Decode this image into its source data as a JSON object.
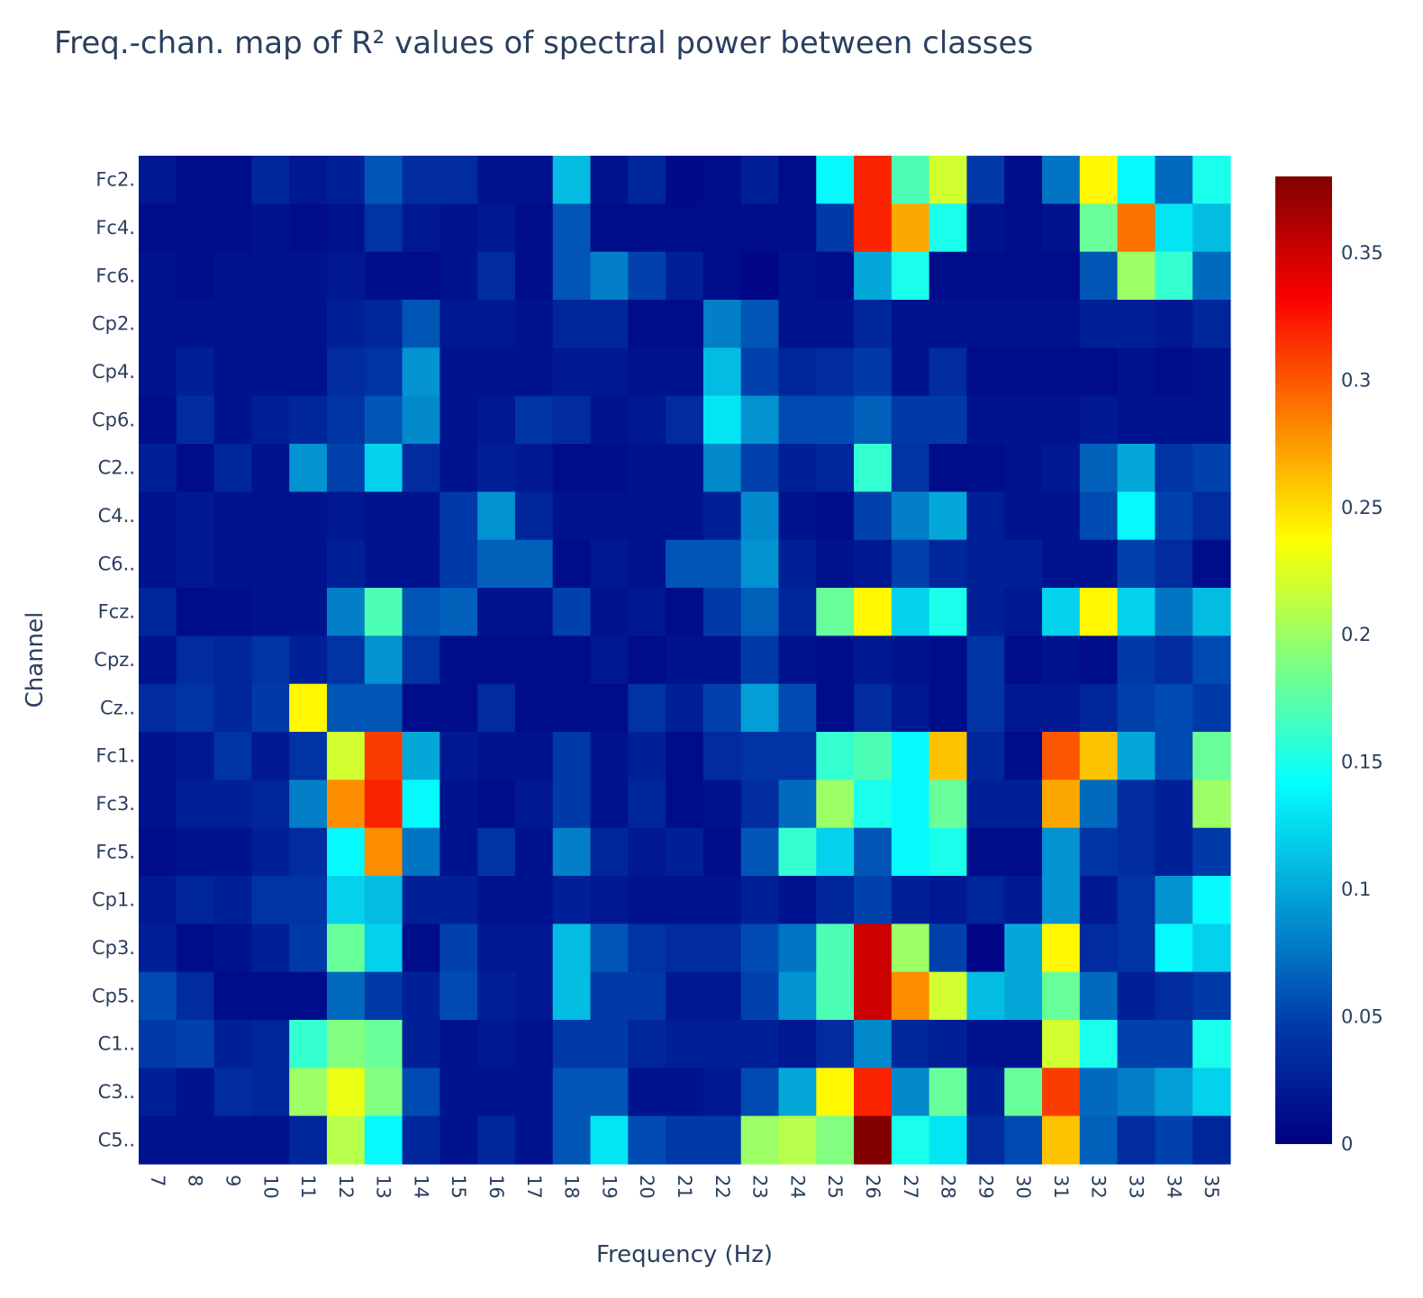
{
  "chart_data": {
    "type": "heatmap",
    "title": "Freq.-chan. map of R² values of spectral power between classes",
    "xlabel": "Frequency (Hz)",
    "ylabel": "Channel",
    "x": [
      7,
      8,
      9,
      10,
      11,
      12,
      13,
      14,
      15,
      16,
      17,
      18,
      19,
      20,
      21,
      22,
      23,
      24,
      25,
      26,
      27,
      28,
      29,
      30,
      31,
      32,
      33,
      34,
      35
    ],
    "y": [
      "Fc2.",
      "Fc4.",
      "Fc6.",
      "Cp2.",
      "Cp4.",
      "Cp6.",
      "C2..",
      "C4..",
      "C6..",
      "Fcz.",
      "Cpz.",
      "Cz..",
      "Fc1.",
      "Fc3.",
      "Fc5.",
      "Cp1.",
      "Cp3.",
      "Cp5.",
      "C1..",
      "C3..",
      "C5.."
    ],
    "z": [
      [
        0.02,
        0.01,
        0.01,
        0.03,
        0.02,
        0.025,
        0.06,
        0.035,
        0.035,
        0.015,
        0.015,
        0.11,
        0.015,
        0.03,
        0.008,
        0.01,
        0.025,
        0.01,
        0.14,
        0.32,
        0.17,
        0.22,
        0.045,
        0.01,
        0.075,
        0.24,
        0.14,
        0.07,
        0.15
      ],
      [
        0.01,
        0.01,
        0.01,
        0.015,
        0.01,
        0.015,
        0.04,
        0.02,
        0.015,
        0.02,
        0.01,
        0.06,
        0.01,
        0.01,
        0.01,
        0.01,
        0.01,
        0.01,
        0.045,
        0.32,
        0.27,
        0.15,
        0.015,
        0.01,
        0.015,
        0.18,
        0.29,
        0.13,
        0.11
      ],
      [
        0.015,
        0.01,
        0.015,
        0.015,
        0.015,
        0.02,
        0.01,
        0.01,
        0.015,
        0.035,
        0.01,
        0.06,
        0.08,
        0.05,
        0.025,
        0.01,
        0.005,
        0.015,
        0.01,
        0.1,
        0.15,
        0.01,
        0.01,
        0.01,
        0.01,
        0.06,
        0.2,
        0.16,
        0.07
      ],
      [
        0.015,
        0.015,
        0.015,
        0.015,
        0.015,
        0.025,
        0.03,
        0.06,
        0.02,
        0.02,
        0.015,
        0.03,
        0.03,
        0.01,
        0.01,
        0.08,
        0.06,
        0.015,
        0.015,
        0.03,
        0.015,
        0.015,
        0.015,
        0.015,
        0.015,
        0.025,
        0.025,
        0.02,
        0.03
      ],
      [
        0.015,
        0.025,
        0.015,
        0.015,
        0.015,
        0.035,
        0.04,
        0.09,
        0.015,
        0.015,
        0.015,
        0.02,
        0.02,
        0.015,
        0.015,
        0.11,
        0.05,
        0.03,
        0.035,
        0.045,
        0.015,
        0.035,
        0.01,
        0.01,
        0.01,
        0.01,
        0.015,
        0.01,
        0.015
      ],
      [
        0.01,
        0.035,
        0.015,
        0.025,
        0.03,
        0.04,
        0.06,
        0.085,
        0.015,
        0.02,
        0.04,
        0.035,
        0.015,
        0.02,
        0.035,
        0.13,
        0.09,
        0.055,
        0.055,
        0.065,
        0.045,
        0.045,
        0.015,
        0.015,
        0.015,
        0.02,
        0.015,
        0.015,
        0.015
      ],
      [
        0.025,
        0.01,
        0.03,
        0.015,
        0.09,
        0.05,
        0.12,
        0.035,
        0.015,
        0.025,
        0.02,
        0.01,
        0.01,
        0.015,
        0.015,
        0.085,
        0.05,
        0.025,
        0.03,
        0.16,
        0.04,
        0.01,
        0.01,
        0.015,
        0.02,
        0.065,
        0.1,
        0.04,
        0.05
      ],
      [
        0.015,
        0.02,
        0.015,
        0.015,
        0.015,
        0.02,
        0.015,
        0.015,
        0.045,
        0.09,
        0.03,
        0.015,
        0.015,
        0.015,
        0.015,
        0.025,
        0.085,
        0.015,
        0.01,
        0.05,
        0.08,
        0.1,
        0.025,
        0.015,
        0.015,
        0.055,
        0.14,
        0.05,
        0.035
      ],
      [
        0.015,
        0.02,
        0.015,
        0.015,
        0.015,
        0.025,
        0.015,
        0.015,
        0.045,
        0.065,
        0.065,
        0.01,
        0.02,
        0.015,
        0.06,
        0.06,
        0.09,
        0.025,
        0.015,
        0.02,
        0.05,
        0.03,
        0.025,
        0.025,
        0.015,
        0.015,
        0.05,
        0.035,
        0.01
      ],
      [
        0.03,
        0.01,
        0.01,
        0.015,
        0.015,
        0.08,
        0.17,
        0.06,
        0.065,
        0.015,
        0.015,
        0.05,
        0.015,
        0.02,
        0.01,
        0.045,
        0.065,
        0.03,
        0.18,
        0.24,
        0.12,
        0.15,
        0.025,
        0.02,
        0.12,
        0.24,
        0.12,
        0.075,
        0.11
      ],
      [
        0.015,
        0.035,
        0.03,
        0.04,
        0.025,
        0.04,
        0.09,
        0.04,
        0.01,
        0.01,
        0.01,
        0.01,
        0.02,
        0.01,
        0.015,
        0.015,
        0.045,
        0.015,
        0.01,
        0.02,
        0.015,
        0.01,
        0.04,
        0.01,
        0.015,
        0.01,
        0.045,
        0.035,
        0.055
      ],
      [
        0.035,
        0.04,
        0.03,
        0.045,
        0.24,
        0.06,
        0.06,
        0.01,
        0.01,
        0.035,
        0.01,
        0.01,
        0.01,
        0.04,
        0.025,
        0.05,
        0.095,
        0.055,
        0.01,
        0.035,
        0.02,
        0.01,
        0.04,
        0.02,
        0.02,
        0.03,
        0.05,
        0.055,
        0.045
      ],
      [
        0.015,
        0.02,
        0.04,
        0.02,
        0.04,
        0.22,
        0.31,
        0.1,
        0.02,
        0.015,
        0.015,
        0.045,
        0.015,
        0.025,
        0.01,
        0.035,
        0.04,
        0.04,
        0.16,
        0.17,
        0.14,
        0.26,
        0.03,
        0.01,
        0.3,
        0.26,
        0.1,
        0.055,
        0.18
      ],
      [
        0.015,
        0.025,
        0.025,
        0.03,
        0.08,
        0.28,
        0.32,
        0.14,
        0.015,
        0.01,
        0.02,
        0.045,
        0.015,
        0.03,
        0.01,
        0.015,
        0.035,
        0.07,
        0.2,
        0.15,
        0.14,
        0.18,
        0.025,
        0.025,
        0.27,
        0.07,
        0.035,
        0.025,
        0.2
      ],
      [
        0.01,
        0.015,
        0.015,
        0.025,
        0.035,
        0.14,
        0.28,
        0.075,
        0.015,
        0.04,
        0.015,
        0.08,
        0.03,
        0.02,
        0.025,
        0.01,
        0.06,
        0.16,
        0.12,
        0.06,
        0.14,
        0.15,
        0.01,
        0.01,
        0.09,
        0.04,
        0.035,
        0.025,
        0.045
      ],
      [
        0.02,
        0.03,
        0.025,
        0.04,
        0.04,
        0.12,
        0.11,
        0.025,
        0.025,
        0.015,
        0.015,
        0.025,
        0.02,
        0.015,
        0.015,
        0.015,
        0.025,
        0.015,
        0.03,
        0.05,
        0.025,
        0.02,
        0.03,
        0.02,
        0.09,
        0.02,
        0.04,
        0.09,
        0.14
      ],
      [
        0.025,
        0.01,
        0.015,
        0.025,
        0.045,
        0.18,
        0.12,
        0.01,
        0.05,
        0.02,
        0.02,
        0.11,
        0.06,
        0.04,
        0.035,
        0.035,
        0.055,
        0.075,
        0.17,
        0.35,
        0.2,
        0.05,
        0.005,
        0.1,
        0.24,
        0.035,
        0.04,
        0.14,
        0.12
      ],
      [
        0.055,
        0.035,
        0.01,
        0.01,
        0.01,
        0.07,
        0.045,
        0.025,
        0.055,
        0.025,
        0.02,
        0.11,
        0.045,
        0.045,
        0.02,
        0.02,
        0.05,
        0.09,
        0.17,
        0.35,
        0.28,
        0.22,
        0.11,
        0.1,
        0.18,
        0.07,
        0.025,
        0.035,
        0.045
      ],
      [
        0.045,
        0.05,
        0.025,
        0.03,
        0.16,
        0.19,
        0.18,
        0.025,
        0.015,
        0.02,
        0.015,
        0.045,
        0.045,
        0.03,
        0.025,
        0.025,
        0.025,
        0.02,
        0.035,
        0.085,
        0.03,
        0.025,
        0.015,
        0.015,
        0.22,
        0.15,
        0.05,
        0.05,
        0.15
      ],
      [
        0.025,
        0.015,
        0.035,
        0.03,
        0.2,
        0.23,
        0.19,
        0.055,
        0.015,
        0.015,
        0.015,
        0.06,
        0.06,
        0.015,
        0.015,
        0.02,
        0.055,
        0.1,
        0.24,
        0.32,
        0.085,
        0.18,
        0.025,
        0.18,
        0.31,
        0.07,
        0.08,
        0.095,
        0.12
      ],
      [
        0.015,
        0.015,
        0.015,
        0.015,
        0.03,
        0.21,
        0.14,
        0.03,
        0.015,
        0.03,
        0.015,
        0.06,
        0.13,
        0.055,
        0.045,
        0.045,
        0.2,
        0.21,
        0.19,
        0.38,
        0.15,
        0.13,
        0.035,
        0.055,
        0.26,
        0.065,
        0.035,
        0.05,
        0.03
      ]
    ],
    "zmin": 0,
    "zmax": 0.38,
    "colorscale": "Jet",
    "colorbar_ticks": [
      "0",
      "0.05",
      "0.1",
      "0.15",
      "0.2",
      "0.25",
      "0.3",
      "0.35"
    ],
    "colorbar_tick_values": [
      0,
      0.05,
      0.1,
      0.15,
      0.2,
      0.25,
      0.3,
      0.35
    ],
    "grid": false,
    "x_tick_angle": 90
  }
}
